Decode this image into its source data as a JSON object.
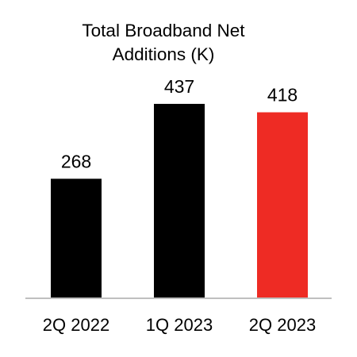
{
  "chart_data": {
    "type": "bar",
    "title": "Total Broadband Net\nAdditions (K)",
    "xlabel": "",
    "ylabel": "",
    "categories": [
      "2Q 2022",
      "1Q 2023",
      "2Q 2023"
    ],
    "values": [
      268,
      437,
      418
    ],
    "value_labels": [
      "268",
      "437",
      "418"
    ],
    "ylim": [
      0,
      460
    ],
    "grid": false,
    "legend": "none",
    "bar_colors": [
      "#000000",
      "#000000",
      "#ee2b24"
    ],
    "axis_color": "#bfbfbf"
  }
}
